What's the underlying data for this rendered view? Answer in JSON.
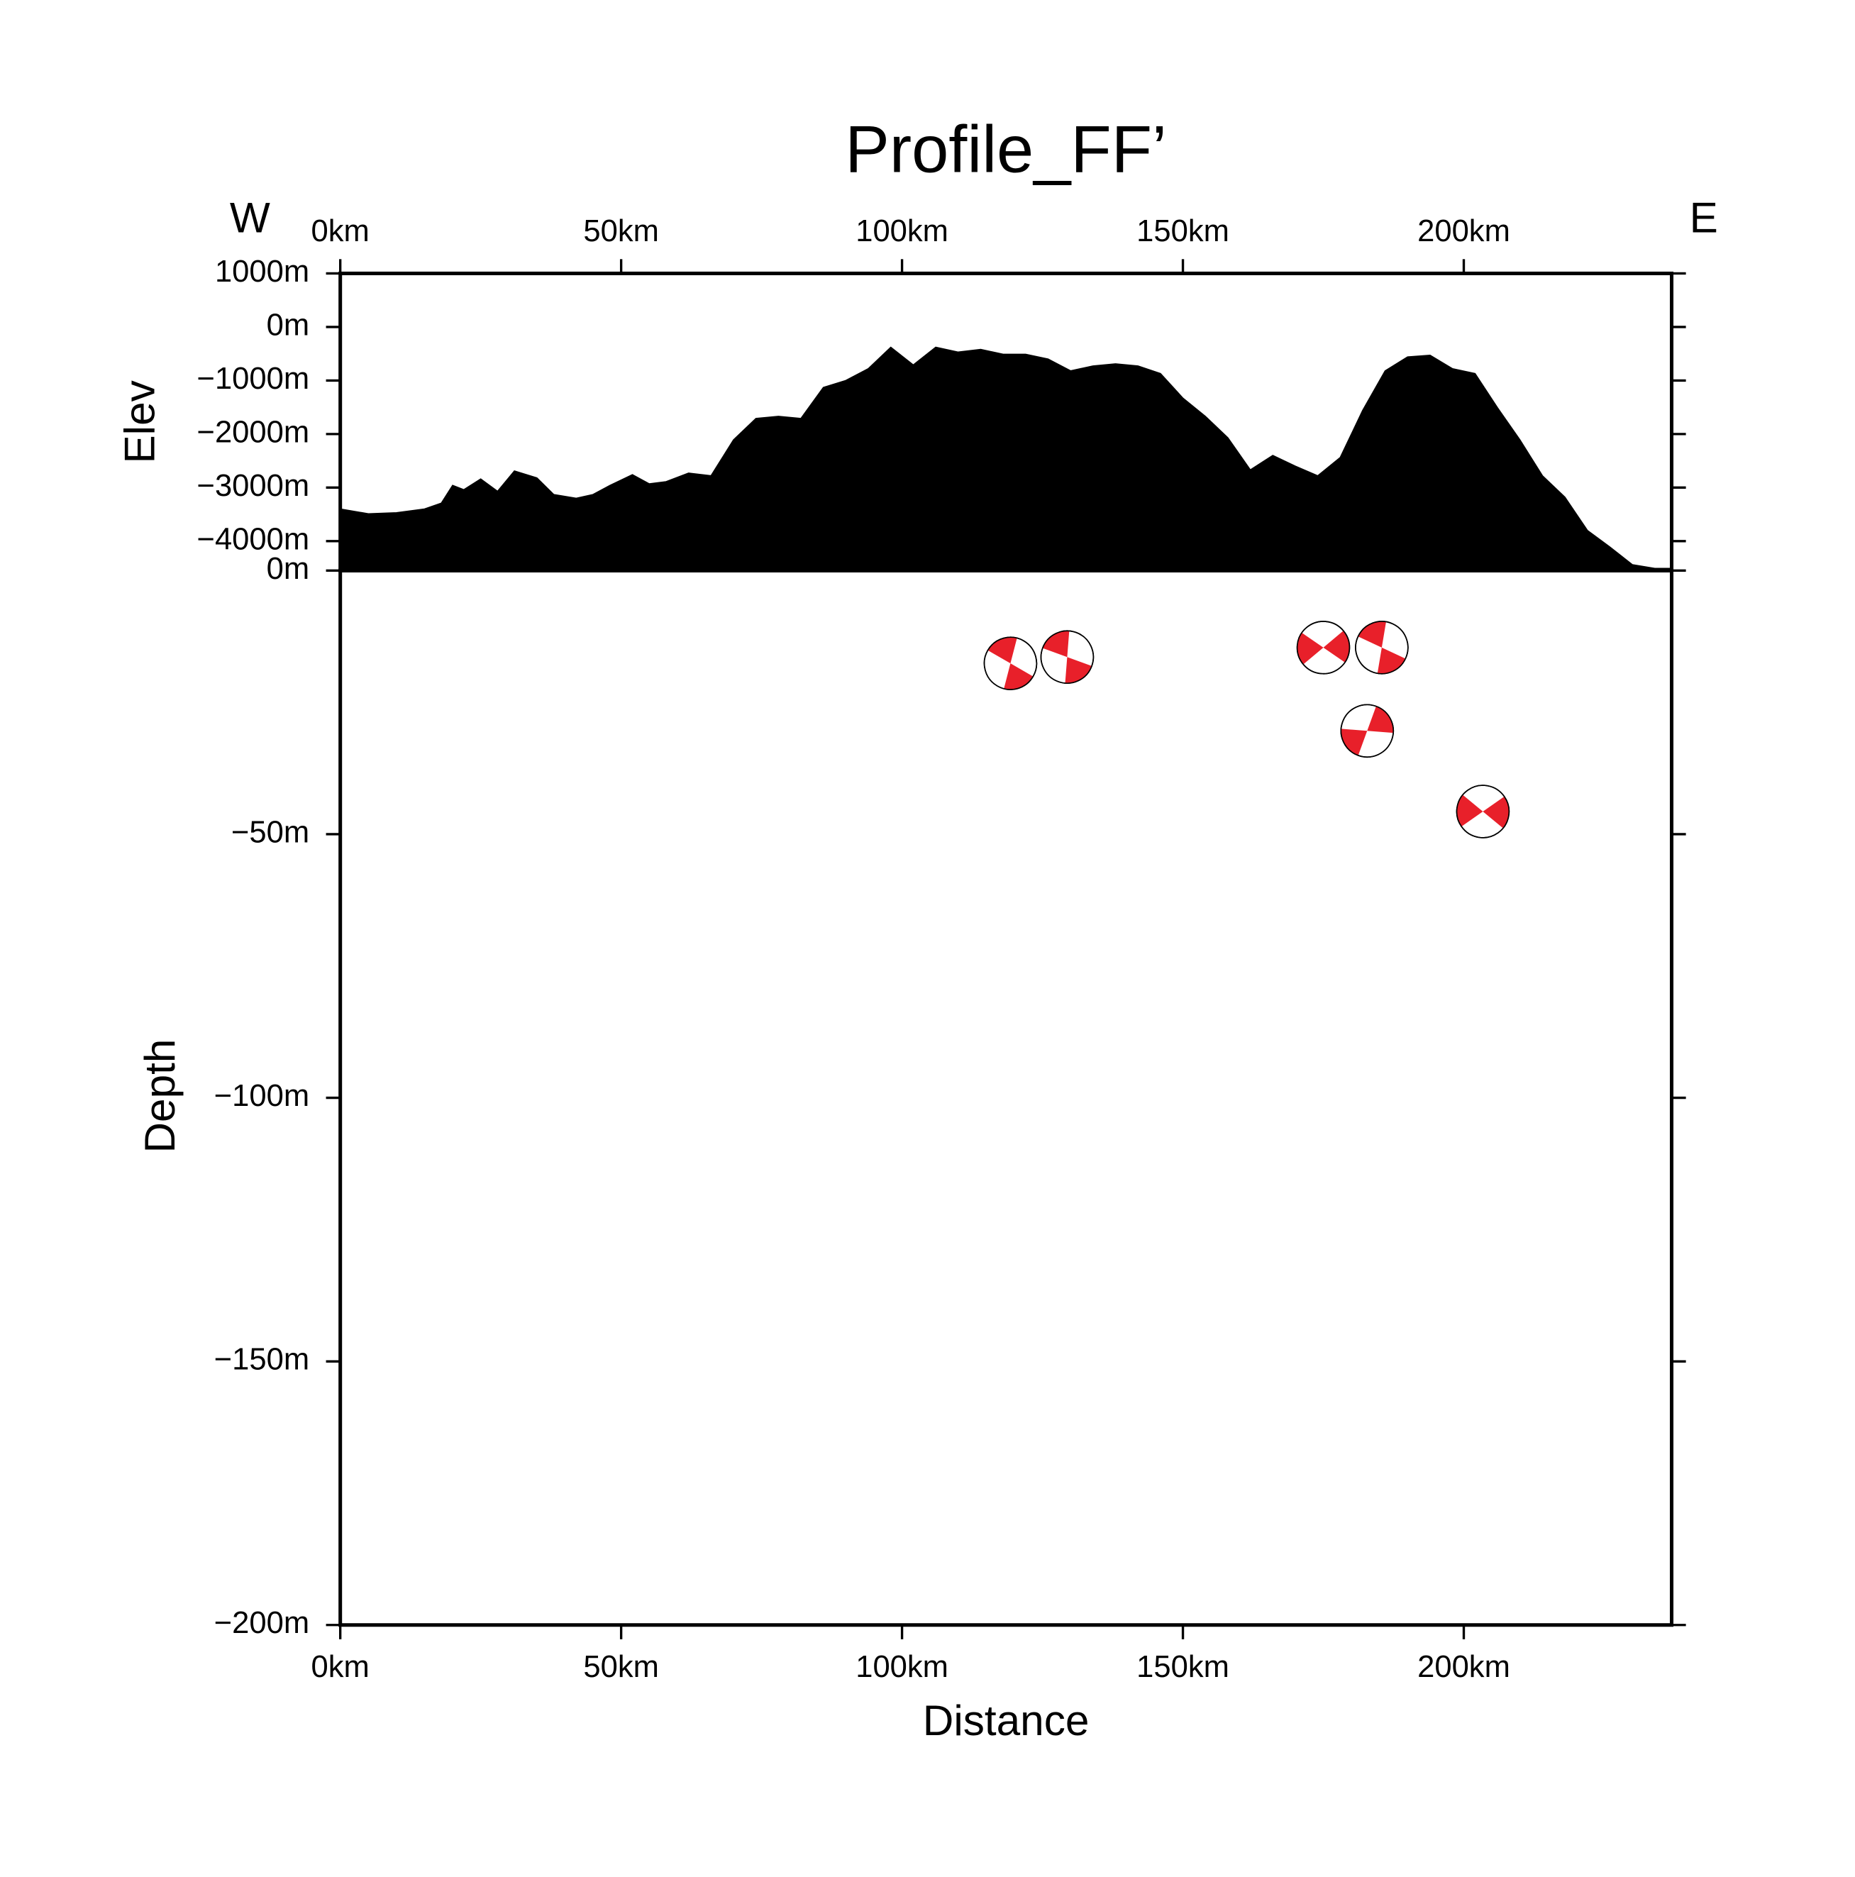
{
  "chart_data": [
    {
      "type": "area",
      "title": "Profile_FF’",
      "annotations": [
        "W",
        "E"
      ],
      "ylabel": "Elev",
      "color": "#000000",
      "x": [
        0,
        5,
        10,
        15,
        18,
        20,
        22,
        25,
        28,
        31,
        35,
        38,
        42,
        45,
        48,
        52,
        55,
        58,
        62,
        66,
        70,
        74,
        78,
        82,
        86,
        90,
        94,
        98,
        102,
        106,
        110,
        114,
        118,
        122,
        126,
        130,
        134,
        138,
        142,
        146,
        150,
        154,
        158,
        162,
        166,
        170,
        174,
        178,
        182,
        186,
        190,
        194,
        198,
        202,
        206,
        210,
        214,
        218,
        222,
        226,
        230,
        234,
        237
      ],
      "values": [
        -3400,
        -3490,
        -3470,
        -3400,
        -3290,
        -2960,
        -3040,
        -2840,
        -3070,
        -2690,
        -2820,
        -3130,
        -3200,
        -3130,
        -2960,
        -2760,
        -2930,
        -2890,
        -2730,
        -2780,
        -2110,
        -1710,
        -1670,
        -1710,
        -1130,
        -1000,
        -780,
        -380,
        -710,
        -380,
        -470,
        -420,
        -510,
        -510,
        -600,
        -820,
        -730,
        -690,
        -730,
        -870,
        -1330,
        -1670,
        -2070,
        -2670,
        -2400,
        -2600,
        -2780,
        -2440,
        -1560,
        -820,
        -560,
        -530,
        -780,
        -870,
        -1510,
        -2110,
        -2780,
        -3180,
        -3800,
        -4110,
        -4440,
        -4510,
        -4510
      ],
      "xlim": [
        0,
        237
      ],
      "xticks": [
        {
          "value": 0,
          "label": "0km"
        },
        {
          "value": 50,
          "label": "50km"
        },
        {
          "value": 100,
          "label": "100km"
        },
        {
          "value": 150,
          "label": "150km"
        },
        {
          "value": 200,
          "label": "200km"
        }
      ],
      "ylim": [
        -4550,
        1000
      ],
      "yticks": [
        {
          "value": -4000,
          "label": "−4000m"
        },
        {
          "value": -3000,
          "label": "−3000m"
        },
        {
          "value": -2000,
          "label": "−2000m"
        },
        {
          "value": -1000,
          "label": "−1000m"
        },
        {
          "value": 0,
          "label": "0m"
        },
        {
          "value": 1000,
          "label": "1000m"
        }
      ]
    },
    {
      "type": "scatter",
      "xlabel": "Distance",
      "ylabel": "Depth",
      "color": "#e8202a",
      "x": [
        119.3,
        129.4,
        175,
        185.4,
        182.8,
        203.4
      ],
      "values": [
        -17.6,
        -16.4,
        -14.6,
        -14.6,
        -30.4,
        -45.7
      ],
      "xlim": [
        0,
        237
      ],
      "xticks": [
        {
          "value": 0,
          "label": "0km"
        },
        {
          "value": 50,
          "label": "50km"
        },
        {
          "value": 100,
          "label": "100km"
        },
        {
          "value": 150,
          "label": "150km"
        },
        {
          "value": 200,
          "label": "200km"
        }
      ],
      "ylim": [
        -200,
        0
      ],
      "yticks": [
        {
          "value": -200,
          "label": "−200m"
        },
        {
          "value": -150,
          "label": "−150m"
        },
        {
          "value": -100,
          "label": "−100m"
        },
        {
          "value": -50,
          "label": "−50m"
        },
        {
          "value": 0,
          "label": "0m"
        }
      ]
    }
  ]
}
